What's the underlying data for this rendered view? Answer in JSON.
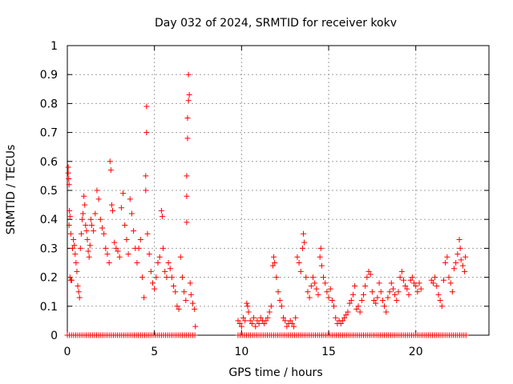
{
  "chart_data": {
    "type": "scatter",
    "title": "Day 032 of 2024, SRMTID for receiver kokv",
    "xlabel": "GPS time / hours",
    "ylabel": "SRMTID / TECUs",
    "xlim": [
      0,
      24.2
    ],
    "ylim": [
      0,
      1
    ],
    "x_ticks": [
      0,
      5,
      10,
      15,
      20
    ],
    "y_ticks": [
      0,
      0.1,
      0.2,
      0.3,
      0.4,
      0.5,
      0.6,
      0.7,
      0.8,
      0.9,
      1
    ],
    "x_tick_labels": [
      "0",
      "5",
      "10",
      "15",
      "20"
    ],
    "y_tick_labels": [
      "0",
      "0.1",
      "0.2",
      "0.3",
      "0.4",
      "0.5",
      "0.6",
      "0.7",
      "0.8",
      "0.9",
      "1"
    ],
    "grid": true,
    "marker": "+",
    "series": [
      {
        "name": "SRMTID",
        "color": "#ff0000",
        "points": [
          [
            0.05,
            0.58
          ],
          [
            0.05,
            0.56
          ],
          [
            0.08,
            0.54
          ],
          [
            0.1,
            0.52
          ],
          [
            0.12,
            0.43
          ],
          [
            0.15,
            0.41
          ],
          [
            0.1,
            0.38
          ],
          [
            0.2,
            0.35
          ],
          [
            0.15,
            0.2
          ],
          [
            0.2,
            0.19
          ],
          [
            0.25,
            0.19
          ],
          [
            0.3,
            0.3
          ],
          [
            0.35,
            0.33
          ],
          [
            0.4,
            0.31
          ],
          [
            0.45,
            0.28
          ],
          [
            0.5,
            0.25
          ],
          [
            0.55,
            0.22
          ],
          [
            0.6,
            0.17
          ],
          [
            0.65,
            0.15
          ],
          [
            0.7,
            0.13
          ],
          [
            0.75,
            0.3
          ],
          [
            0.8,
            0.35
          ],
          [
            0.85,
            0.4
          ],
          [
            0.9,
            0.42
          ],
          [
            0.95,
            0.48
          ],
          [
            1.0,
            0.45
          ],
          [
            1.05,
            0.38
          ],
          [
            1.1,
            0.36
          ],
          [
            1.15,
            0.33
          ],
          [
            1.2,
            0.29
          ],
          [
            1.25,
            0.27
          ],
          [
            1.3,
            0.31
          ],
          [
            1.35,
            0.4
          ],
          [
            1.4,
            0.38
          ],
          [
            1.5,
            0.36
          ],
          [
            1.6,
            0.42
          ],
          [
            1.7,
            0.5
          ],
          [
            1.8,
            0.47
          ],
          [
            1.9,
            0.4
          ],
          [
            2.0,
            0.37
          ],
          [
            2.1,
            0.35
          ],
          [
            2.2,
            0.3
          ],
          [
            2.3,
            0.28
          ],
          [
            2.4,
            0.25
          ],
          [
            2.45,
            0.6
          ],
          [
            2.5,
            0.57
          ],
          [
            2.55,
            0.45
          ],
          [
            2.6,
            0.43
          ],
          [
            2.7,
            0.32
          ],
          [
            2.8,
            0.3
          ],
          [
            2.9,
            0.29
          ],
          [
            3.0,
            0.27
          ],
          [
            3.1,
            0.44
          ],
          [
            3.2,
            0.49
          ],
          [
            3.3,
            0.38
          ],
          [
            3.4,
            0.33
          ],
          [
            3.5,
            0.28
          ],
          [
            3.6,
            0.47
          ],
          [
            3.7,
            0.42
          ],
          [
            3.8,
            0.36
          ],
          [
            3.9,
            0.3
          ],
          [
            4.0,
            0.25
          ],
          [
            4.1,
            0.3
          ],
          [
            4.2,
            0.33
          ],
          [
            4.3,
            0.2
          ],
          [
            4.4,
            0.13
          ],
          [
            4.5,
            0.55
          ],
          [
            4.5,
            0.5
          ],
          [
            4.55,
            0.79
          ],
          [
            4.55,
            0.7
          ],
          [
            4.6,
            0.35
          ],
          [
            4.7,
            0.28
          ],
          [
            4.8,
            0.22
          ],
          [
            4.9,
            0.18
          ],
          [
            5.0,
            0.16
          ],
          [
            5.1,
            0.2
          ],
          [
            5.2,
            0.25
          ],
          [
            5.3,
            0.27
          ],
          [
            5.4,
            0.43
          ],
          [
            5.45,
            0.41
          ],
          [
            5.5,
            0.3
          ],
          [
            5.6,
            0.22
          ],
          [
            5.7,
            0.2
          ],
          [
            5.8,
            0.25
          ],
          [
            5.9,
            0.23
          ],
          [
            6.0,
            0.2
          ],
          [
            6.1,
            0.17
          ],
          [
            6.2,
            0.15
          ],
          [
            6.3,
            0.1
          ],
          [
            6.4,
            0.09
          ],
          [
            6.5,
            0.27
          ],
          [
            6.6,
            0.2
          ],
          [
            6.7,
            0.15
          ],
          [
            6.8,
            0.12
          ],
          [
            6.85,
            0.39
          ],
          [
            6.85,
            0.48
          ],
          [
            6.85,
            0.55
          ],
          [
            6.9,
            0.68
          ],
          [
            6.9,
            0.75
          ],
          [
            6.95,
            0.81
          ],
          [
            6.95,
            0.9
          ],
          [
            7.0,
            0.83
          ],
          [
            7.05,
            0.18
          ],
          [
            7.1,
            0.14
          ],
          [
            7.2,
            0.11
          ],
          [
            7.3,
            0.09
          ],
          [
            7.35,
            0.03
          ],
          [
            9.8,
            0.05
          ],
          [
            9.9,
            0.04
          ],
          [
            10.0,
            0.03
          ],
          [
            10.1,
            0.06
          ],
          [
            10.2,
            0.05
          ],
          [
            10.3,
            0.11
          ],
          [
            10.35,
            0.1
          ],
          [
            10.4,
            0.08
          ],
          [
            10.5,
            0.05
          ],
          [
            10.6,
            0.04
          ],
          [
            10.7,
            0.06
          ],
          [
            10.8,
            0.03
          ],
          [
            10.9,
            0.05
          ],
          [
            11.0,
            0.04
          ],
          [
            11.1,
            0.06
          ],
          [
            11.2,
            0.05
          ],
          [
            11.3,
            0.04
          ],
          [
            11.4,
            0.05
          ],
          [
            11.5,
            0.06
          ],
          [
            11.6,
            0.08
          ],
          [
            11.7,
            0.1
          ],
          [
            11.8,
            0.24
          ],
          [
            11.85,
            0.27
          ],
          [
            11.9,
            0.25
          ],
          [
            12.0,
            0.2
          ],
          [
            12.1,
            0.15
          ],
          [
            12.2,
            0.12
          ],
          [
            12.3,
            0.1
          ],
          [
            12.4,
            0.06
          ],
          [
            12.5,
            0.05
          ],
          [
            12.6,
            0.03
          ],
          [
            12.7,
            0.04
          ],
          [
            12.8,
            0.05
          ],
          [
            12.9,
            0.04
          ],
          [
            13.0,
            0.03
          ],
          [
            13.1,
            0.06
          ],
          [
            13.2,
            0.27
          ],
          [
            13.3,
            0.25
          ],
          [
            13.4,
            0.22
          ],
          [
            13.5,
            0.3
          ],
          [
            13.55,
            0.35
          ],
          [
            13.6,
            0.32
          ],
          [
            13.7,
            0.2
          ],
          [
            13.8,
            0.15
          ],
          [
            13.9,
            0.13
          ],
          [
            14.0,
            0.17
          ],
          [
            14.1,
            0.2
          ],
          [
            14.2,
            0.18
          ],
          [
            14.3,
            0.16
          ],
          [
            14.4,
            0.14
          ],
          [
            14.5,
            0.27
          ],
          [
            14.55,
            0.3
          ],
          [
            14.6,
            0.24
          ],
          [
            14.7,
            0.2
          ],
          [
            14.8,
            0.18
          ],
          [
            14.9,
            0.15
          ],
          [
            15.0,
            0.13
          ],
          [
            15.1,
            0.16
          ],
          [
            15.2,
            0.12
          ],
          [
            15.3,
            0.1
          ],
          [
            15.4,
            0.06
          ],
          [
            15.5,
            0.04
          ],
          [
            15.6,
            0.05
          ],
          [
            15.7,
            0.04
          ],
          [
            15.8,
            0.05
          ],
          [
            15.9,
            0.06
          ],
          [
            16.0,
            0.07
          ],
          [
            16.1,
            0.08
          ],
          [
            16.2,
            0.11
          ],
          [
            16.3,
            0.12
          ],
          [
            16.4,
            0.14
          ],
          [
            16.5,
            0.17
          ],
          [
            16.6,
            0.09
          ],
          [
            16.7,
            0.1
          ],
          [
            16.8,
            0.08
          ],
          [
            16.9,
            0.12
          ],
          [
            17.0,
            0.14
          ],
          [
            17.1,
            0.17
          ],
          [
            17.2,
            0.2
          ],
          [
            17.3,
            0.22
          ],
          [
            17.4,
            0.21
          ],
          [
            17.5,
            0.15
          ],
          [
            17.6,
            0.12
          ],
          [
            17.7,
            0.11
          ],
          [
            17.8,
            0.13
          ],
          [
            17.9,
            0.18
          ],
          [
            18.0,
            0.15
          ],
          [
            18.1,
            0.12
          ],
          [
            18.2,
            0.1
          ],
          [
            18.3,
            0.08
          ],
          [
            18.4,
            0.13
          ],
          [
            18.5,
            0.15
          ],
          [
            18.6,
            0.18
          ],
          [
            18.7,
            0.16
          ],
          [
            18.8,
            0.14
          ],
          [
            18.9,
            0.12
          ],
          [
            19.0,
            0.15
          ],
          [
            19.1,
            0.2
          ],
          [
            19.2,
            0.22
          ],
          [
            19.3,
            0.19
          ],
          [
            19.4,
            0.17
          ],
          [
            19.5,
            0.16
          ],
          [
            19.6,
            0.14
          ],
          [
            19.7,
            0.19
          ],
          [
            19.8,
            0.2
          ],
          [
            19.9,
            0.18
          ],
          [
            20.0,
            0.17
          ],
          [
            20.1,
            0.15
          ],
          [
            20.2,
            0.18
          ],
          [
            20.3,
            0.16
          ],
          [
            20.9,
            0.19
          ],
          [
            21.0,
            0.18
          ],
          [
            21.1,
            0.2
          ],
          [
            21.2,
            0.17
          ],
          [
            21.3,
            0.14
          ],
          [
            21.4,
            0.12
          ],
          [
            21.5,
            0.1
          ],
          [
            21.6,
            0.19
          ],
          [
            21.7,
            0.25
          ],
          [
            21.8,
            0.27
          ],
          [
            21.9,
            0.2
          ],
          [
            22.0,
            0.18
          ],
          [
            22.1,
            0.15
          ],
          [
            22.2,
            0.23
          ],
          [
            22.3,
            0.25
          ],
          [
            22.4,
            0.28
          ],
          [
            22.5,
            0.33
          ],
          [
            22.55,
            0.3
          ],
          [
            22.6,
            0.26
          ],
          [
            22.7,
            0.24
          ],
          [
            22.8,
            0.22
          ],
          [
            22.85,
            0.27
          ]
        ]
      },
      {
        "name": "zero-baseline",
        "color": "#ff0000",
        "y": 0,
        "x_ranges": [
          [
            0,
            7.4
          ],
          [
            9.8,
            22.9
          ]
        ],
        "x_step": 0.12
      }
    ]
  }
}
